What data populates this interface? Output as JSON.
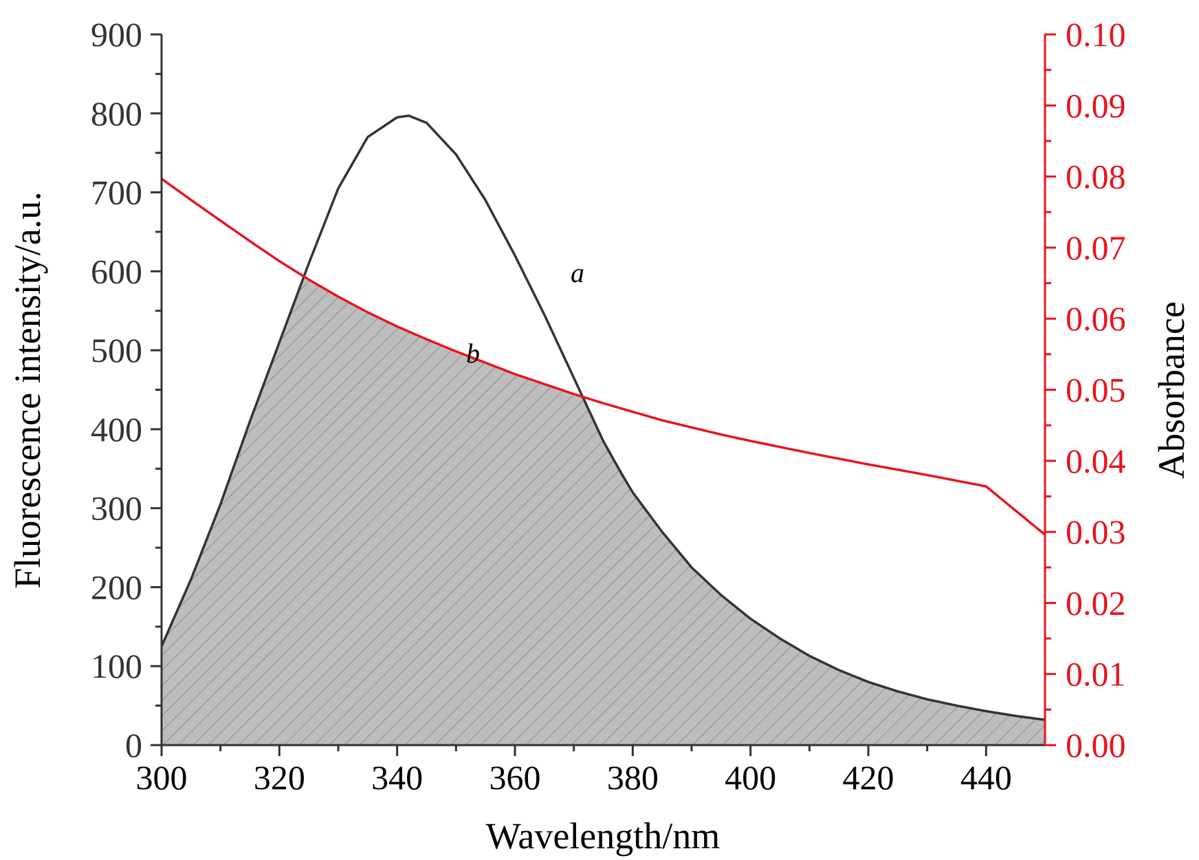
{
  "chart_data": {
    "type": "line",
    "xlabel": "Wavelength/nm",
    "ylabel_left": "Fluorescence intensity/a.u.",
    "ylabel_right": "Absorbance",
    "xlim": [
      300,
      450
    ],
    "ylim_left": [
      0,
      900
    ],
    "ylim_right": [
      0.0,
      0.1
    ],
    "x_ticks": [
      "300",
      "320",
      "340",
      "360",
      "380",
      "400",
      "420",
      "440"
    ],
    "y_left_ticks": [
      "0",
      "100",
      "200",
      "300",
      "400",
      "500",
      "600",
      "700",
      "800",
      "900"
    ],
    "y_right_ticks": [
      "0.00",
      "0.01",
      "0.02",
      "0.03",
      "0.04",
      "0.05",
      "0.06",
      "0.07",
      "0.08",
      "0.09",
      "0.10"
    ],
    "grid": false,
    "overlap_area_shaded": true,
    "series": [
      {
        "name": "a",
        "axis": "left",
        "color": "#333333",
        "x": [
          300,
          305,
          310,
          315,
          320,
          325,
          330,
          335,
          340,
          342,
          345,
          350,
          355,
          360,
          365,
          370,
          375,
          378,
          380,
          385,
          390,
          395,
          400,
          405,
          410,
          415,
          420,
          425,
          430,
          435,
          440,
          445,
          450
        ],
        "y": [
          125,
          210,
          305,
          410,
          510,
          610,
          705,
          770,
          795,
          797,
          788,
          748,
          690,
          620,
          545,
          465,
          385,
          345,
          320,
          270,
          225,
          190,
          160,
          135,
          113,
          95,
          80,
          68,
          58,
          50,
          43,
          37,
          32
        ]
      },
      {
        "name": "b",
        "axis": "right",
        "color": "#e8141e",
        "x": [
          300,
          305,
          310,
          315,
          320,
          325,
          330,
          335,
          340,
          345,
          350,
          355,
          360,
          365,
          370,
          375,
          380,
          385,
          390,
          395,
          400,
          410,
          420,
          430,
          440,
          450
        ],
        "y": [
          0.0797,
          0.0767,
          0.0738,
          0.0709,
          0.0681,
          0.0655,
          0.0631,
          0.0609,
          0.0589,
          0.0571,
          0.0554,
          0.0538,
          0.0522,
          0.0508,
          0.0494,
          0.0481,
          0.0469,
          0.0457,
          0.0447,
          0.0437,
          0.0428,
          0.0411,
          0.0395,
          0.038,
          0.0364,
          0.0296
        ]
      }
    ]
  },
  "colors": {
    "left_axis": "#333333",
    "right_axis": "#e8141e",
    "shade": "#bdbdbd"
  }
}
